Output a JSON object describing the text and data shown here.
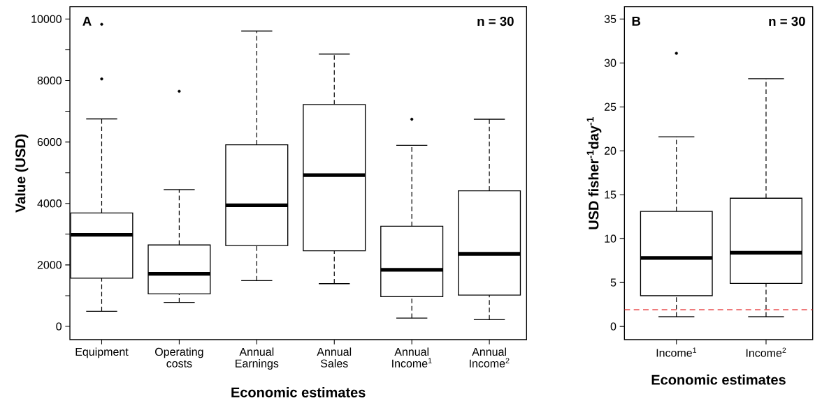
{
  "chart_data": [
    {
      "type": "box",
      "color": "#000000",
      "xlabel": "Economic estimates",
      "ylabel": "Value (USD)",
      "categories": [
        "Equipment",
        "Operating costs",
        "Annual Earnings",
        "Annual Sales",
        "Annual Income$^{1}$",
        "Annual Income$^{2}$"
      ],
      "boxes": [
        {
          "low": 490,
          "q1": 1570,
          "median": 2980,
          "q3": 3690,
          "high": 6750,
          "outliers": [
            9830,
            8050
          ]
        },
        {
          "low": 780,
          "q1": 1060,
          "median": 1710,
          "q3": 2650,
          "high": 4450,
          "outliers": [
            7650
          ]
        },
        {
          "low": 1490,
          "q1": 2630,
          "median": 3940,
          "q3": 5910,
          "high": 9610
        },
        {
          "low": 1390,
          "q1": 2460,
          "median": 4920,
          "q3": 7220,
          "high": 8860
        },
        {
          "low": 270,
          "q1": 970,
          "median": 1840,
          "q3": 3260,
          "high": 5890,
          "outliers": [
            6740
          ]
        },
        {
          "low": 220,
          "q1": 1020,
          "median": 2360,
          "q3": 4410,
          "high": 6740
        }
      ],
      "ylim": [
        -430,
        10400
      ],
      "yticks": [
        0,
        {
          "value": 1000,
          "label": null
        },
        2000,
        {
          "value": 3000,
          "label": null
        },
        4000,
        {
          "value": 5000,
          "label": null
        },
        6000,
        {
          "value": 7000,
          "label": null
        },
        8000,
        {
          "value": 9000,
          "label": null
        },
        10000
      ],
      "annotations": [
        "A",
        "n = 30"
      ]
    },
    {
      "type": "box",
      "color": "#000000",
      "xlabel": "Economic estimates",
      "ylabel": "USD fisher$^{-1}$day$^{-1}$",
      "categories": [
        "Income$^{1}$",
        "Income$^{2}$"
      ],
      "boxes": [
        {
          "low": 1.1,
          "q1": 3.5,
          "median": 7.8,
          "q3": 13.1,
          "high": 21.6,
          "outliers": [
            31.1
          ]
        },
        {
          "low": 1.1,
          "q1": 4.9,
          "median": 8.4,
          "q3": 14.6,
          "high": 28.2
        }
      ],
      "ylim": [
        -1.5,
        36.4
      ],
      "yticks": [
        0,
        5,
        10,
        15,
        20,
        25,
        30,
        35
      ],
      "ref_lines": [
        {
          "axis": "y",
          "value": 1.9,
          "color": "#e41a1c",
          "line_style": "dashed"
        }
      ],
      "annotations": [
        "B",
        "n = 30"
      ]
    }
  ]
}
